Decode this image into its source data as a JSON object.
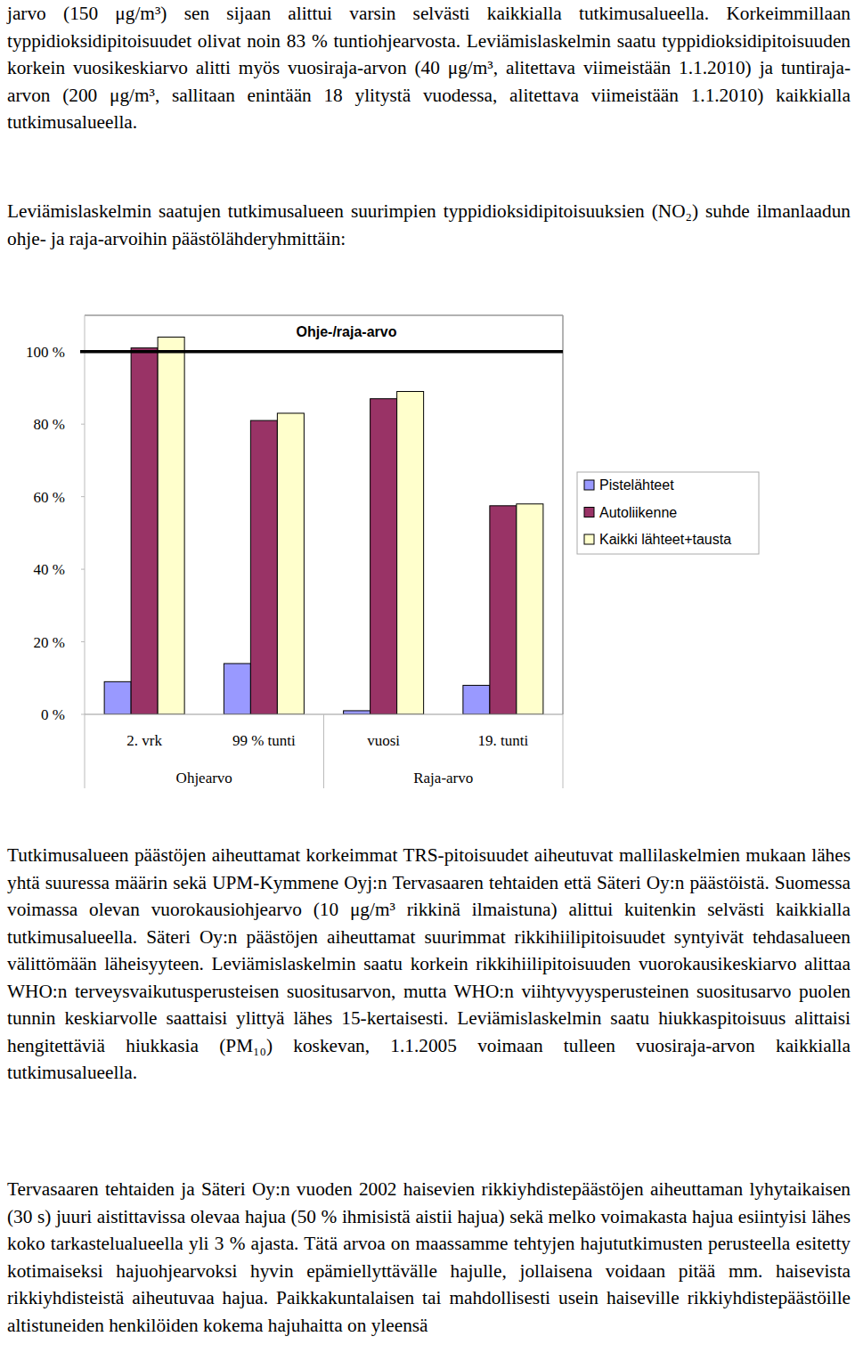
{
  "text_before": [
    "jarvo (150 μg/m³) sen sijaan alittui varsin selvästi kaikkialla tutkimusalueella. Korkeimmillaan typpidioksidipitoisuudet olivat noin 83 % tuntiohjearvosta. Leviämislaskelmin saatu typpidioksidipitoisuuden korkein vuosikeskiarvo alitti myös vuosiraja-arvon (40 μg/m³, alitettava viimeistään 1.1.2010) ja tuntiraja-arvon (200 μg/m³, sallitaan enintään 18 ylitystä vuodessa, alitettava viimeistään 1.1.2010) kaikkialla tutkimusalueella.",
    "Leviämislaskelmin saatujen tutkimusalueen suurimpien typpidioksidipitoisuuksien (NO₂) suhde ilmanlaadun ohje- ja raja-arvoihin päästölähderyhmittäin:"
  ],
  "chart_data": {
    "type": "bar",
    "categories": [
      "2. vrk",
      "99 % tunti",
      "vuosi",
      "19. tunti"
    ],
    "groups": [
      {
        "label": "Ohjearvo",
        "categories": [
          "2. vrk",
          "99 % tunti"
        ]
      },
      {
        "label": "Raja-arvo",
        "categories": [
          "vuosi",
          "19. tunti"
        ]
      }
    ],
    "series": [
      {
        "name": "Pistelähteet",
        "color": "#9999ff",
        "values": [
          9,
          14,
          1,
          8
        ]
      },
      {
        "name": "Autoliikenne",
        "color": "#993366",
        "values": [
          101,
          81,
          87,
          57.5
        ]
      },
      {
        "name": "Kaikki lähteet+tausta",
        "color": "#ffffcc",
        "values": [
          104,
          83,
          89,
          58
        ]
      }
    ],
    "annotations": [
      {
        "text": "Ohje-/raja-arvo",
        "value": 100
      }
    ],
    "ylim": [
      0,
      110
    ],
    "yticks": [
      {
        "value": 0,
        "label": "0 %"
      },
      {
        "value": 20,
        "label": "20 %"
      },
      {
        "value": 40,
        "label": "40 %"
      },
      {
        "value": 60,
        "label": "60 %"
      },
      {
        "value": 80,
        "label": "80 %"
      },
      {
        "value": 100,
        "label": "100 %"
      }
    ],
    "grid": false,
    "legend": "right"
  },
  "text_after": [
    "Tutkimusalueen päästöjen aiheuttamat korkeimmat TRS-pitoisuudet aiheutuvat mallilaskelmien mukaan lähes yhtä suuressa määrin sekä UPM-Kymmene Oyj:n Tervasaaren tehtaiden että Säteri Oy:n päästöistä. Suomessa voimassa olevan vuorokausiohjearvo (10 μg/m³ rikkinä ilmaistuna) alittui kuitenkin selvästi kaikkialla tutkimusalueella. Säteri Oy:n päästöjen aiheuttamat suurimmat rikkihiilipitoisuudet syntyivät tehdasalueen välittömään läheisyyteen. Leviämislaskelmin saatu korkein rikkihiilipitoisuuden vuorokausikeskiarvo alittaa WHO:n terveysvaikutusperusteisen suositusarvon, mutta WHO:n viihtyvyysperusteinen suositusarvo puolen tunnin keskiarvolle saattaisi ylittyä lähes 15-kertaisesti. Leviämislaskelmin saatu hiukkaspitoisuus alittaisi hengitettäviä hiukkasia (PM₁₀) koskevan, 1.1.2005 voimaan tulleen vuosiraja-arvon kaikkialla tutkimusalueella.",
    "Tervasaaren tehtaiden ja Säteri Oy:n vuoden 2002 haisevien rikkiyhdistepäästöjen aiheuttaman lyhytaikaisen (30 s) juuri aistittavissa olevaa hajua (50 % ihmisistä aistii hajua) sekä melko voimakasta hajua esiintyisi lähes koko tarkastelualueella yli 3 % ajasta. Tätä arvoa on maassamme tehtyjen hajututkimusten perusteella esitetty kotimaiseksi hajuohjearvoksi hyvin epämiellyttävälle hajulle, jollaisena voidaan pitää mm. haisevista rikkiyhdisteistä aiheutuvaa hajua. Paikkakuntalaisen tai mahdollisesti usein haiseville rikkiyhdistepäästöille altistuneiden henkilöiden kokema hajuhaitta on yleensä"
  ]
}
